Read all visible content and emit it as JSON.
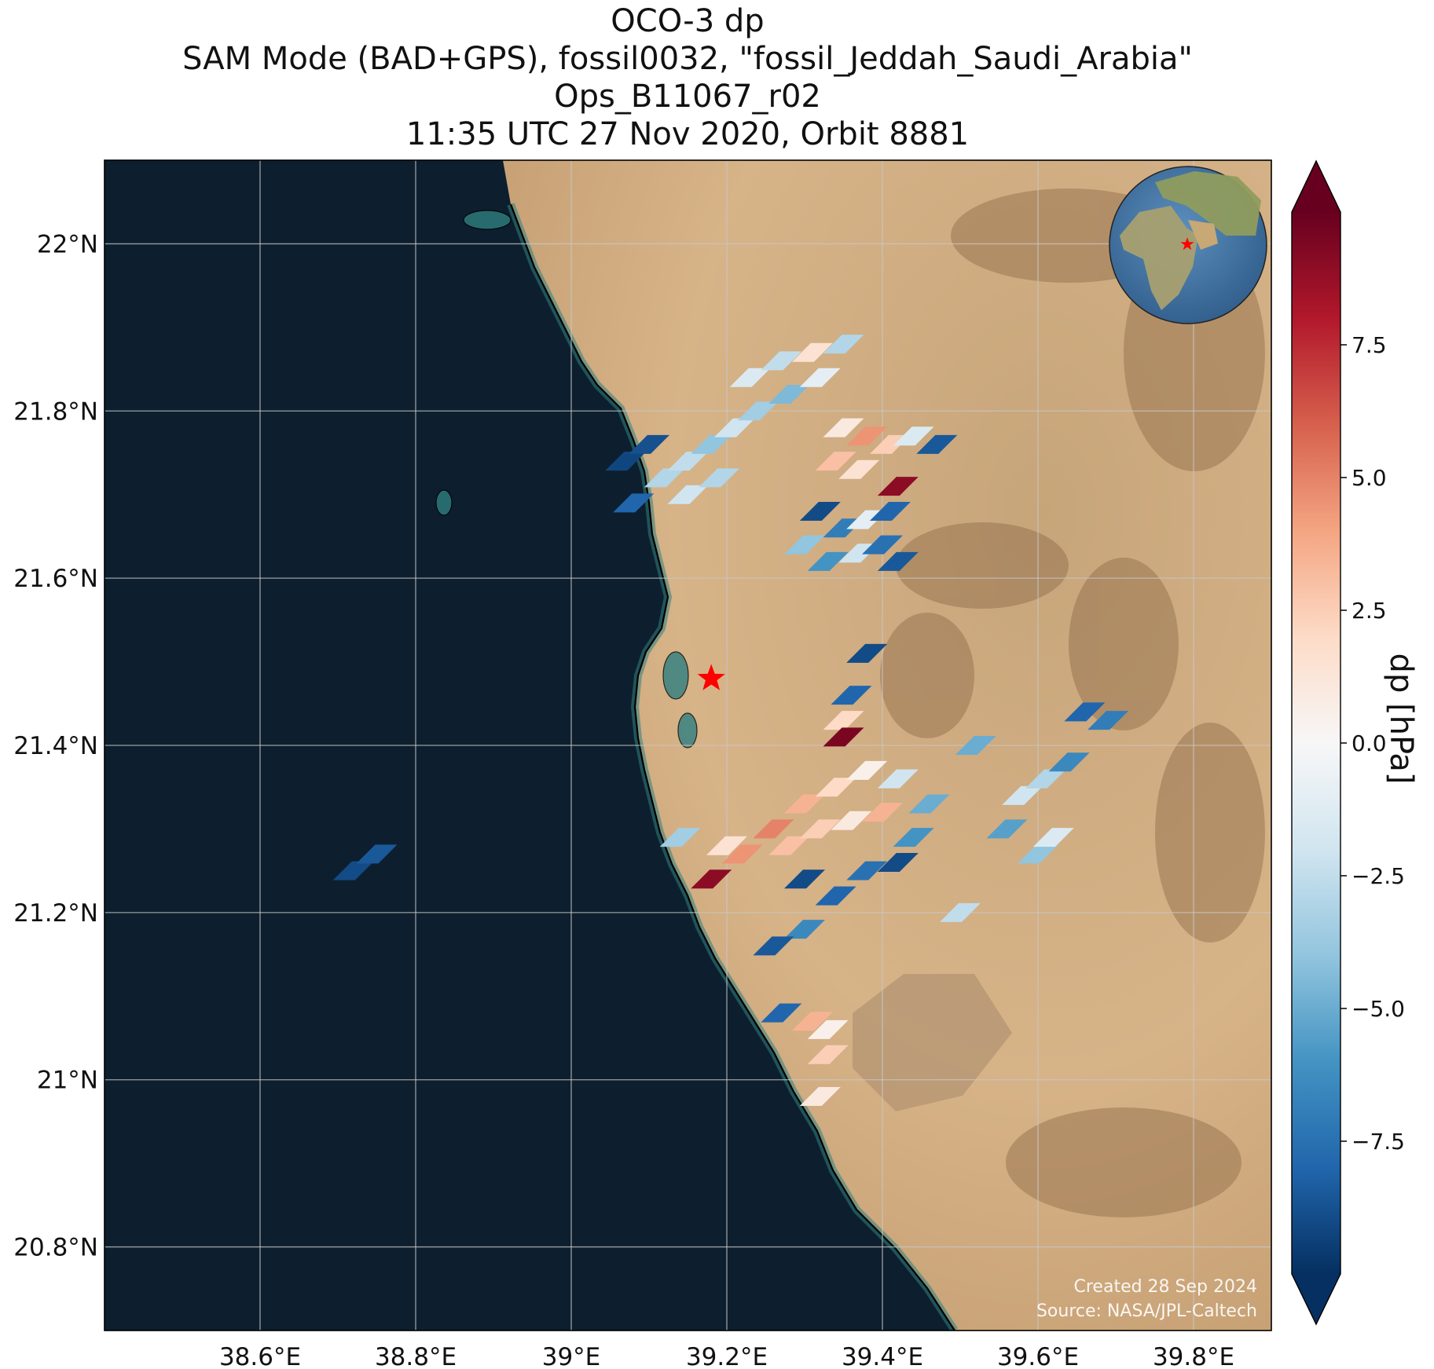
{
  "title": {
    "line1": "OCO-3 dp",
    "line2": "SAM Mode (BAD+GPS), fossil0032, \"fossil_Jeddah_Saudi_Arabia\"",
    "line3": "Ops_B11067_r02",
    "line4": "11:35 UTC 27 Nov 2020, Orbit 8881"
  },
  "credits": {
    "created": "Created 28 Sep 2024",
    "source": "Source: NASA/JPL-Caltech"
  },
  "colorbar": {
    "label": "dp [hPa]",
    "ticks": [
      "7.5",
      "5.0",
      "2.5",
      "0.0",
      "−2.5",
      "−5.0",
      "−7.5"
    ],
    "tick_values": [
      7.5,
      5.0,
      2.5,
      0.0,
      -2.5,
      -5.0,
      -7.5
    ],
    "vmin": -10,
    "vmax": 10,
    "colormap": "RdBu_r",
    "colors": [
      "#053061",
      "#2166ac",
      "#4393c3",
      "#92c5de",
      "#d1e5f0",
      "#f7f7f7",
      "#fddbc7",
      "#f4a582",
      "#d6604d",
      "#b2182b",
      "#67001f"
    ],
    "extend": "both"
  },
  "map": {
    "projection": "PlateCarree",
    "lon_range": [
      38.4,
      39.9
    ],
    "lat_range": [
      20.7,
      22.1
    ],
    "x_ticks": [
      "38.6°E",
      "38.8°E",
      "39°E",
      "39.2°E",
      "39.4°E",
      "39.6°E",
      "39.8°E"
    ],
    "x_tick_values": [
      38.6,
      38.8,
      39.0,
      39.2,
      39.4,
      39.6,
      39.8
    ],
    "y_ticks": [
      "22°N",
      "21.8°N",
      "21.6°N",
      "21.4°N",
      "21.2°N",
      "21°N",
      "20.8°N"
    ],
    "y_tick_values": [
      22.0,
      21.8,
      21.6,
      21.4,
      21.2,
      21.0,
      20.8
    ],
    "grid": true,
    "background": "satellite imagery",
    "sea_color": "#0d1f2e",
    "land_color": "#d4ad7e",
    "target_marker": {
      "lon": 39.18,
      "lat": 21.48,
      "symbol": "star",
      "color": "#ff0000"
    },
    "inset_globe": true
  },
  "chart_data": {
    "type": "heatmap",
    "title": "OCO-3 dp",
    "xlabel": "",
    "ylabel": "",
    "xlim": [
      38.4,
      39.9
    ],
    "ylim": [
      20.7,
      22.1
    ],
    "value_label": "dp [hPa]",
    "soundings": [
      {
        "lon": 38.72,
        "lat": 21.25,
        "dp": -9.0
      },
      {
        "lon": 38.75,
        "lat": 21.27,
        "dp": -8.5
      },
      {
        "lon": 39.07,
        "lat": 21.74,
        "dp": -9.2
      },
      {
        "lon": 39.1,
        "lat": 21.76,
        "dp": -8.8
      },
      {
        "lon": 39.08,
        "lat": 21.69,
        "dp": -8.0
      },
      {
        "lon": 39.12,
        "lat": 21.72,
        "dp": -3.0
      },
      {
        "lon": 39.15,
        "lat": 21.74,
        "dp": -2.5
      },
      {
        "lon": 39.18,
        "lat": 21.76,
        "dp": -4.0
      },
      {
        "lon": 39.21,
        "lat": 21.78,
        "dp": -2.0
      },
      {
        "lon": 39.24,
        "lat": 21.8,
        "dp": -3.5
      },
      {
        "lon": 39.15,
        "lat": 21.7,
        "dp": -2.0
      },
      {
        "lon": 39.19,
        "lat": 21.72,
        "dp": -3.0
      },
      {
        "lon": 39.23,
        "lat": 21.84,
        "dp": -1.5
      },
      {
        "lon": 39.27,
        "lat": 21.86,
        "dp": -2.5
      },
      {
        "lon": 39.31,
        "lat": 21.87,
        "dp": 1.5
      },
      {
        "lon": 39.35,
        "lat": 21.88,
        "dp": -3.0
      },
      {
        "lon": 39.28,
        "lat": 21.82,
        "dp": -4.5
      },
      {
        "lon": 39.32,
        "lat": 21.84,
        "dp": -1.0
      },
      {
        "lon": 39.35,
        "lat": 21.78,
        "dp": 1.0
      },
      {
        "lon": 39.38,
        "lat": 21.77,
        "dp": 4.5
      },
      {
        "lon": 39.41,
        "lat": 21.76,
        "dp": 2.5
      },
      {
        "lon": 39.34,
        "lat": 21.74,
        "dp": 3.0
      },
      {
        "lon": 39.37,
        "lat": 21.73,
        "dp": 1.5
      },
      {
        "lon": 39.44,
        "lat": 21.77,
        "dp": -1.5
      },
      {
        "lon": 39.47,
        "lat": 21.76,
        "dp": -8.5
      },
      {
        "lon": 39.42,
        "lat": 21.71,
        "dp": 9.0
      },
      {
        "lon": 39.32,
        "lat": 21.68,
        "dp": -9.0
      },
      {
        "lon": 39.35,
        "lat": 21.66,
        "dp": -7.0
      },
      {
        "lon": 39.38,
        "lat": 21.67,
        "dp": -1.0
      },
      {
        "lon": 39.41,
        "lat": 21.68,
        "dp": -8.0
      },
      {
        "lon": 39.3,
        "lat": 21.64,
        "dp": -4.0
      },
      {
        "lon": 39.33,
        "lat": 21.62,
        "dp": -6.0
      },
      {
        "lon": 39.37,
        "lat": 21.63,
        "dp": -2.0
      },
      {
        "lon": 39.4,
        "lat": 21.64,
        "dp": -7.5
      },
      {
        "lon": 39.42,
        "lat": 21.62,
        "dp": -8.5
      },
      {
        "lon": 39.38,
        "lat": 21.51,
        "dp": -9.0
      },
      {
        "lon": 39.36,
        "lat": 21.46,
        "dp": -8.0
      },
      {
        "lon": 39.35,
        "lat": 21.43,
        "dp": 2.0
      },
      {
        "lon": 39.35,
        "lat": 21.41,
        "dp": 9.5
      },
      {
        "lon": 39.2,
        "lat": 21.28,
        "dp": 1.5
      },
      {
        "lon": 39.18,
        "lat": 21.24,
        "dp": 9.0
      },
      {
        "lon": 39.22,
        "lat": 21.27,
        "dp": 4.5
      },
      {
        "lon": 39.26,
        "lat": 21.3,
        "dp": 5.0
      },
      {
        "lon": 39.3,
        "lat": 21.33,
        "dp": 3.5
      },
      {
        "lon": 39.34,
        "lat": 21.35,
        "dp": 2.0
      },
      {
        "lon": 39.38,
        "lat": 21.37,
        "dp": 0.5
      },
      {
        "lon": 39.42,
        "lat": 21.36,
        "dp": -2.0
      },
      {
        "lon": 39.46,
        "lat": 21.33,
        "dp": -5.0
      },
      {
        "lon": 39.28,
        "lat": 21.28,
        "dp": 3.0
      },
      {
        "lon": 39.32,
        "lat": 21.3,
        "dp": 2.5
      },
      {
        "lon": 39.36,
        "lat": 21.31,
        "dp": 1.0
      },
      {
        "lon": 39.4,
        "lat": 21.32,
        "dp": 3.5
      },
      {
        "lon": 39.44,
        "lat": 21.29,
        "dp": -6.0
      },
      {
        "lon": 39.3,
        "lat": 21.24,
        "dp": -9.0
      },
      {
        "lon": 39.34,
        "lat": 21.22,
        "dp": -8.0
      },
      {
        "lon": 39.38,
        "lat": 21.25,
        "dp": -7.5
      },
      {
        "lon": 39.42,
        "lat": 21.26,
        "dp": -9.0
      },
      {
        "lon": 39.3,
        "lat": 21.18,
        "dp": -6.5
      },
      {
        "lon": 39.26,
        "lat": 21.16,
        "dp": -8.5
      },
      {
        "lon": 39.27,
        "lat": 21.08,
        "dp": -8.0
      },
      {
        "lon": 39.31,
        "lat": 21.07,
        "dp": 3.5
      },
      {
        "lon": 39.33,
        "lat": 21.06,
        "dp": 0.5
      },
      {
        "lon": 39.33,
        "lat": 21.03,
        "dp": 2.5
      },
      {
        "lon": 39.32,
        "lat": 20.98,
        "dp": 1.0
      },
      {
        "lon": 39.14,
        "lat": 21.29,
        "dp": -3.5
      },
      {
        "lon": 39.5,
        "lat": 21.2,
        "dp": -2.5
      },
      {
        "lon": 39.52,
        "lat": 21.4,
        "dp": -5.0
      },
      {
        "lon": 39.56,
        "lat": 21.3,
        "dp": -5.5
      },
      {
        "lon": 39.58,
        "lat": 21.34,
        "dp": -2.0
      },
      {
        "lon": 39.61,
        "lat": 21.36,
        "dp": -3.0
      },
      {
        "lon": 39.64,
        "lat": 21.38,
        "dp": -6.5
      },
      {
        "lon": 39.66,
        "lat": 21.44,
        "dp": -8.0
      },
      {
        "lon": 39.69,
        "lat": 21.43,
        "dp": -7.0
      },
      {
        "lon": 39.6,
        "lat": 21.27,
        "dp": -4.0
      },
      {
        "lon": 39.62,
        "lat": 21.29,
        "dp": -1.5
      }
    ]
  }
}
